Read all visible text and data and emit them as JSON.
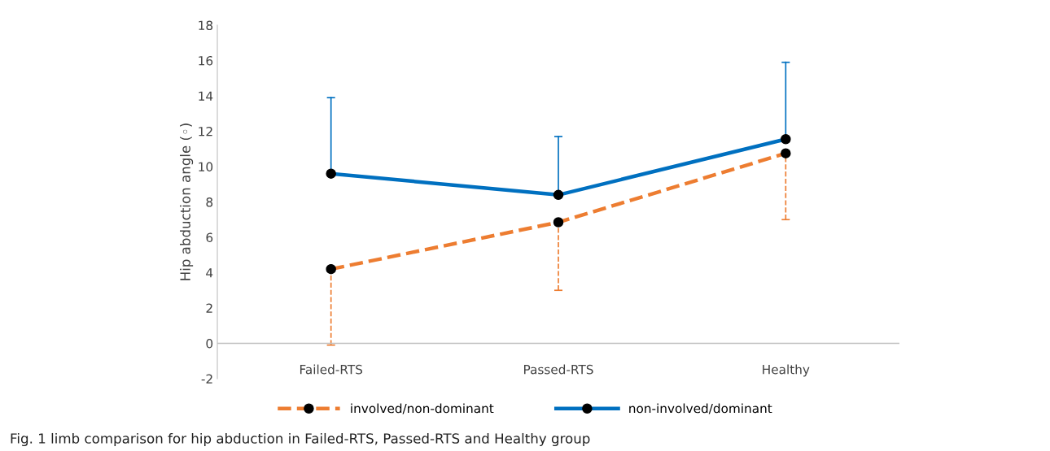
{
  "chart_data": {
    "type": "line",
    "ylabel": "Hip abduction angle (◦)",
    "categories": [
      "Failed-RTS",
      "Passed-RTS",
      "Healthy"
    ],
    "series": [
      {
        "name": "involved/non-dominant",
        "color": "#ed7d31",
        "line_style": "dashed",
        "values": [
          4.2,
          6.85,
          10.75
        ],
        "errors": [
          [
            -0.1,
            4.2
          ],
          [
            3.0,
            6.85
          ],
          [
            7.0,
            10.75
          ]
        ]
      },
      {
        "name": "non-involved/dominant",
        "color": "#0070c0",
        "line_style": "solid",
        "values": [
          9.6,
          8.4,
          11.55
        ],
        "errors": [
          [
            9.6,
            13.9
          ],
          [
            8.4,
            11.7
          ],
          [
            11.55,
            15.9
          ]
        ]
      }
    ],
    "ylim": [
      -2,
      18
    ],
    "yticks": [
      -2,
      0,
      2,
      4,
      6,
      8,
      10,
      12,
      14,
      16,
      18
    ],
    "marker": "circle",
    "grid": false,
    "legend": "bottom",
    "annotations": [
      "Fig. 1 limb comparison for hip abduction in Failed-RTS, Passed-RTS and Healthy group"
    ]
  }
}
